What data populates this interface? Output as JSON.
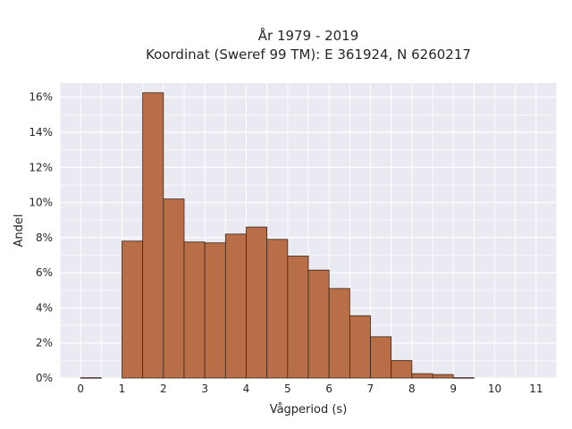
{
  "chart_data": {
    "type": "bar",
    "title_line1": "År 1979 - 2019",
    "title_line2": "Koordinat (Sweref 99 TM): E 361924, N 6260217",
    "xlabel": "Vågperiod (s)",
    "ylabel": "Andel",
    "bin_width": 0.5,
    "bins_start": [
      0,
      1,
      1.5,
      2,
      2.5,
      3,
      3.5,
      4,
      4.5,
      5,
      5.5,
      6,
      6.5,
      7,
      7.5,
      8,
      8.5,
      9
    ],
    "values": [
      0.02,
      7.8,
      16.25,
      10.2,
      7.75,
      7.7,
      8.2,
      8.6,
      7.9,
      6.95,
      6.15,
      5.1,
      3.55,
      2.35,
      1.0,
      0.25,
      0.2,
      0.02
    ],
    "xlim": [
      -0.5,
      11.5
    ],
    "ylim": [
      0,
      16.8
    ],
    "xticks": [
      0,
      1,
      2,
      3,
      4,
      5,
      6,
      7,
      8,
      9,
      10,
      11
    ],
    "xtick_labels": [
      "0",
      "1",
      "2",
      "3",
      "4",
      "5",
      "6",
      "7",
      "8",
      "9",
      "10",
      "11"
    ],
    "yticks": [
      0,
      2,
      4,
      6,
      8,
      10,
      12,
      14,
      16
    ],
    "ytick_labels": [
      "0%",
      "2%",
      "4%",
      "6%",
      "8%",
      "10%",
      "12%",
      "14%",
      "16%"
    ],
    "grid": true,
    "colors": {
      "bar_fill": "#b86f48",
      "bar_edge": "#3a2518",
      "plot_bg": "#eaeaf2",
      "grid": "#ffffff"
    }
  }
}
